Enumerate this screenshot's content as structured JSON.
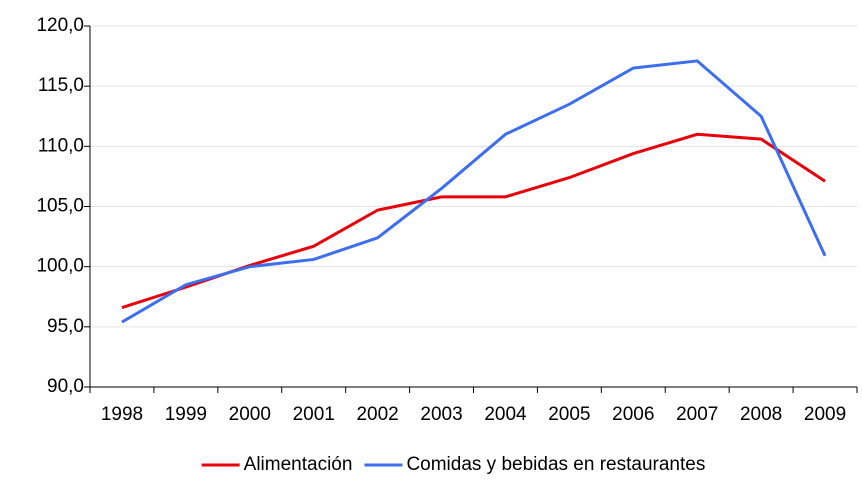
{
  "chart_data": {
    "type": "line",
    "categories": [
      "1998",
      "1999",
      "2000",
      "2001",
      "2002",
      "2003",
      "2004",
      "2005",
      "2006",
      "2007",
      "2008",
      "2009"
    ],
    "series": [
      {
        "name": "Alimentación",
        "color": "#e8000b",
        "values": [
          96.6,
          98.3,
          100.1,
          101.7,
          104.7,
          105.8,
          105.8,
          107.4,
          109.4,
          111.0,
          110.6,
          107.1
        ]
      },
      {
        "name": "Comidas y bebidas en restaurantes",
        "color": "#3d6ef0",
        "values": [
          95.4,
          98.5,
          100.0,
          100.6,
          102.4,
          106.5,
          111.0,
          113.5,
          116.5,
          117.1,
          112.5,
          100.9
        ]
      }
    ],
    "ylim": [
      90,
      120
    ],
    "yticks": [
      {
        "value": 90,
        "label": "90,0"
      },
      {
        "value": 95,
        "label": "95,0"
      },
      {
        "value": 100,
        "label": "100,0"
      },
      {
        "value": 105,
        "label": "105,0"
      },
      {
        "value": 110,
        "label": "110,0"
      },
      {
        "value": 115,
        "label": "115,0"
      },
      {
        "value": 120,
        "label": "120,0"
      }
    ],
    "grid": true,
    "legend": "bottom"
  }
}
